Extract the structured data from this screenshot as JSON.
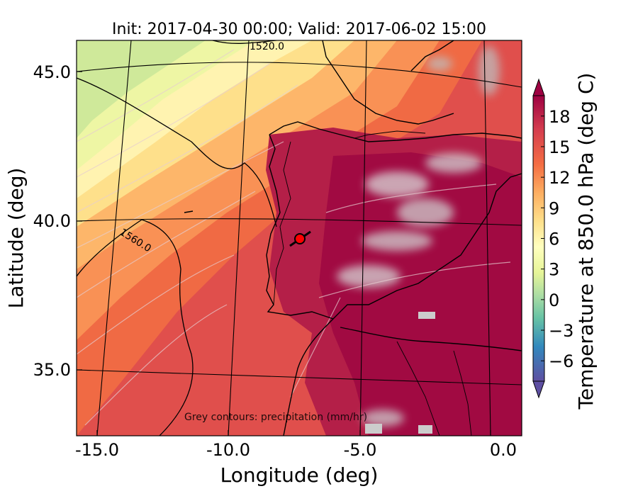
{
  "figure": {
    "title": "Init: 2017-04-30 00:00; Valid: 2017-06-02 15:00",
    "xlabel": "Longitude (deg)",
    "ylabel": "Latitude (deg)",
    "footnote": "Grey contours: precipitation (mm/hr)",
    "lon_ticks": [
      "-15.0",
      "-10.0",
      "-5.0",
      "0.0"
    ],
    "lat_ticks": [
      "45.0",
      "40.0",
      "35.0"
    ],
    "contour_labels": [
      "1520.0",
      "1560.0"
    ]
  },
  "colorbar": {
    "label": "Temperature at 850.0 hPa (deg C)",
    "ticks": [
      "18",
      "15",
      "12",
      "9",
      "6",
      "3",
      "0",
      "−3",
      "−6"
    ],
    "tick_values": [
      18,
      15,
      12,
      9,
      6,
      3,
      0,
      -3,
      -6
    ],
    "min": -8,
    "max": 20,
    "extend": "both"
  },
  "map": {
    "lon_range": [
      -15.7,
      0.1
    ],
    "lat_range": [
      32.6,
      46.1
    ],
    "marker_color": "#ff0000",
    "palette": [
      "#5e4fa2",
      "#3288bd",
      "#66c2a5",
      "#abdda4",
      "#e6f598",
      "#ffffbf",
      "#fee08b",
      "#fdae61",
      "#f46d43",
      "#d53e4f",
      "#9e0142"
    ]
  }
}
